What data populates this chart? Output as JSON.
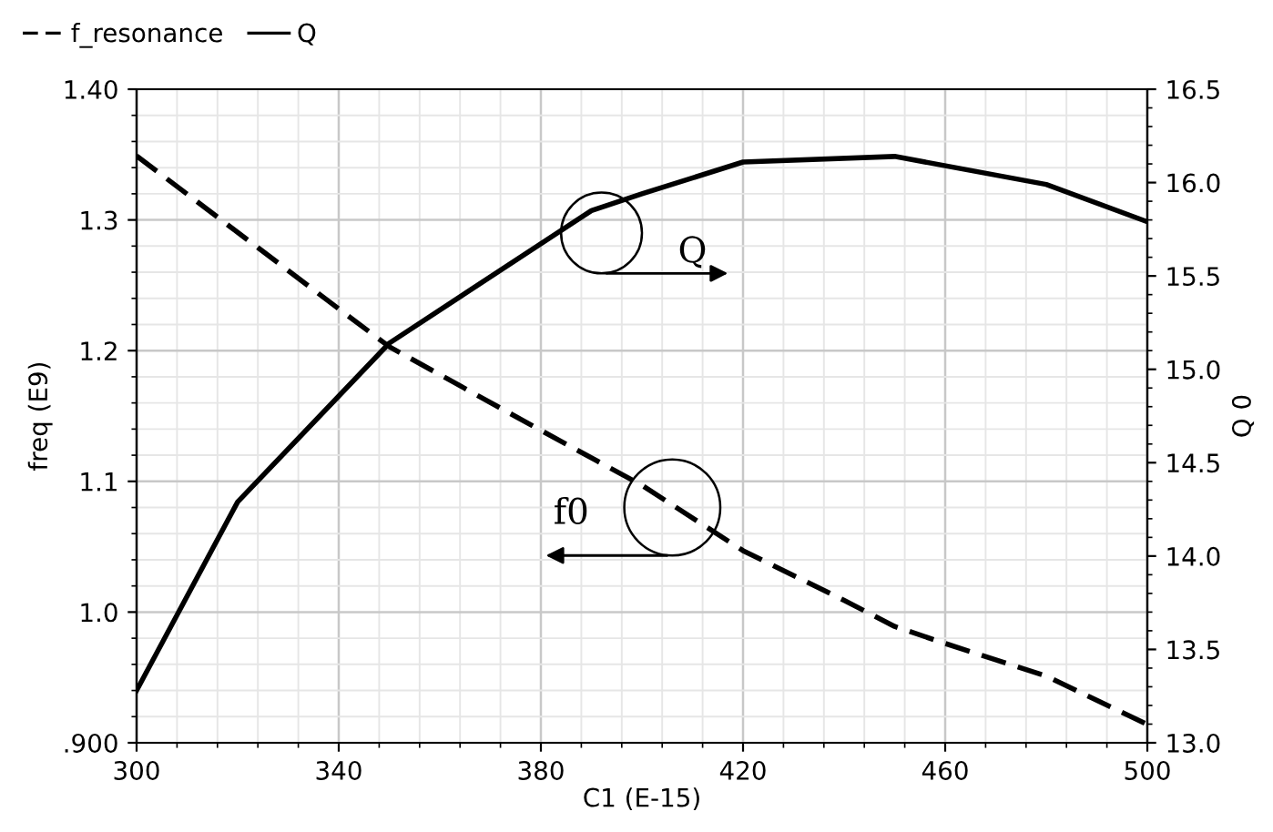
{
  "chart_data": {
    "type": "line",
    "xlabel": "C1 (E-15)",
    "ylabel": "freq (E9)",
    "y2label": "Q 0",
    "xlim": [
      300,
      500
    ],
    "xticks": [
      300,
      340,
      380,
      420,
      460,
      500
    ],
    "ylim": [
      0.9,
      1.4
    ],
    "yticks": [
      {
        "value": 0.9,
        "label": ".900"
      },
      {
        "value": 1.0,
        "label": "1.0"
      },
      {
        "value": 1.1,
        "label": "1.1"
      },
      {
        "value": 1.2,
        "label": "1.2"
      },
      {
        "value": 1.3,
        "label": "1.3"
      },
      {
        "value": 1.4,
        "label": "1.40"
      }
    ],
    "y2lim": [
      13.0,
      16.5
    ],
    "y2ticks": [
      {
        "value": 13.0,
        "label": "13.0"
      },
      {
        "value": 13.5,
        "label": "13.5"
      },
      {
        "value": 14.0,
        "label": "14.0"
      },
      {
        "value": 14.5,
        "label": "14.5"
      },
      {
        "value": 15.0,
        "label": "15.0"
      },
      {
        "value": 15.5,
        "label": "15.5"
      },
      {
        "value": 16.0,
        "label": "16.0"
      },
      {
        "value": 16.5,
        "label": "16.5"
      }
    ],
    "grid": true,
    "legend": "top left",
    "marker": "none",
    "series": [
      {
        "name": "f_resonance",
        "color": "#000000",
        "line_style": "dashed",
        "x": [
          300,
          340,
          350,
          380,
          400,
          420,
          440,
          450,
          460,
          480,
          500
        ],
        "values": [
          1.349,
          1.232,
          1.203,
          1.139,
          1.097,
          1.047,
          1.009,
          0.989,
          0.976,
          0.951,
          0.914
        ]
      },
      {
        "name": "Q",
        "color": "#000000",
        "line_style": "solid",
        "axis": "y2",
        "x": [
          300,
          320,
          350,
          390,
          400,
          420,
          450,
          480,
          500
        ],
        "values": [
          13.28,
          14.29,
          15.14,
          15.85,
          15.94,
          16.11,
          16.14,
          15.99,
          15.79
        ]
      }
    ],
    "annotations": [
      "Q",
      "f0"
    ]
  }
}
